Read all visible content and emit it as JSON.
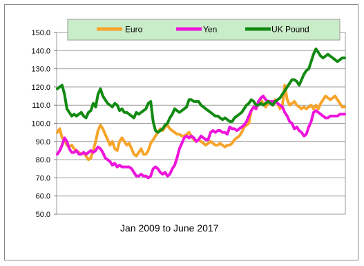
{
  "chart_data": {
    "type": "line",
    "title": "",
    "xlabel": "Jan 2009  to June 2017",
    "ylabel": "",
    "ylim": [
      50,
      150
    ],
    "ytick_labels": [
      "50.0",
      "60.0",
      "70.0",
      "80.0",
      "90.0",
      "100.0",
      "110.0",
      "120.0",
      "130.0",
      "140.0",
      "150.0"
    ],
    "grid": true,
    "legend_placement": "top",
    "x_range": [
      "Jan 2009",
      "June 2017"
    ],
    "series": [
      {
        "name": "Euro",
        "color": "#f7a42a",
        "values": [
          95,
          97,
          92,
          91,
          88,
          87,
          88,
          86,
          85,
          84,
          83,
          84,
          82,
          80,
          81,
          85,
          90,
          96,
          99,
          97,
          94,
          91,
          88,
          90,
          86,
          85,
          90,
          92,
          90,
          88,
          89,
          86,
          83,
          82,
          84,
          86,
          83,
          83,
          85,
          89,
          91,
          93,
          95,
          97,
          96,
          98,
          99,
          97,
          96,
          95,
          94,
          94,
          93,
          93,
          94,
          95,
          93,
          91,
          90,
          91,
          90,
          89,
          88,
          89,
          90,
          89,
          88,
          88,
          89,
          88,
          87,
          88,
          88,
          89,
          91,
          92,
          93,
          95,
          98,
          99,
          100,
          107,
          109,
          108,
          112,
          113,
          111,
          109,
          111,
          112,
          110,
          113,
          111,
          108,
          110,
          121,
          113,
          110,
          111,
          112,
          110,
          109,
          108,
          109,
          108,
          109,
          110,
          108,
          110,
          108,
          111,
          113,
          115,
          114,
          113,
          114,
          115,
          113,
          111,
          109,
          109
        ]
      },
      {
        "name": "Yen",
        "color": "#ee14dc",
        "values": [
          83,
          85,
          88,
          92,
          90,
          86,
          84,
          84,
          85,
          83,
          83,
          84,
          83,
          84,
          85,
          84,
          85,
          87,
          86,
          84,
          81,
          80,
          79,
          77,
          78,
          76,
          77,
          76,
          76,
          76,
          76,
          75,
          73,
          71,
          71,
          72,
          71,
          71,
          70,
          71,
          75,
          76,
          75,
          73,
          72,
          73,
          71,
          72,
          75,
          77,
          81,
          86,
          89,
          92,
          93,
          92,
          93,
          92,
          90,
          91,
          93,
          92,
          91,
          91,
          95,
          96,
          95,
          96,
          96,
          95,
          95,
          94,
          98,
          97,
          97,
          96,
          97,
          98,
          99,
          101,
          104,
          107,
          109,
          108,
          112,
          114,
          115,
          113,
          112,
          112,
          112,
          112,
          111,
          110,
          109,
          106,
          104,
          101,
          100,
          97,
          98,
          96,
          95,
          93,
          94,
          98,
          101,
          106,
          107,
          106,
          105,
          104,
          103,
          103,
          104,
          104,
          104,
          104,
          105,
          105,
          105
        ]
      },
      {
        "name": "UK Pound",
        "color": "#128a12",
        "values": [
          119,
          120,
          121,
          116,
          108,
          106,
          104,
          105,
          104,
          105,
          106,
          104,
          103,
          106,
          107,
          111,
          109,
          116,
          119,
          115,
          113,
          111,
          110,
          109,
          111,
          110,
          107,
          108,
          106,
          106,
          105,
          104,
          103,
          106,
          105,
          106,
          107,
          108,
          111,
          112,
          101,
          96,
          95,
          96,
          97,
          99,
          100,
          103,
          105,
          108,
          107,
          106,
          107,
          108,
          109,
          113,
          113,
          112,
          112,
          112,
          110,
          109,
          108,
          107,
          106,
          105,
          104,
          104,
          103,
          102,
          103,
          102,
          101,
          101,
          103,
          104,
          105,
          106,
          108,
          110,
          111,
          113,
          112,
          110,
          110,
          111,
          110,
          111,
          112,
          111,
          110,
          112,
          113,
          114,
          116,
          118,
          120,
          122,
          124,
          124,
          123,
          121,
          124,
          127,
          129,
          130,
          134,
          138,
          141,
          139,
          137,
          136,
          137,
          138,
          137,
          136,
          135,
          134,
          135,
          136,
          136
        ]
      }
    ]
  }
}
